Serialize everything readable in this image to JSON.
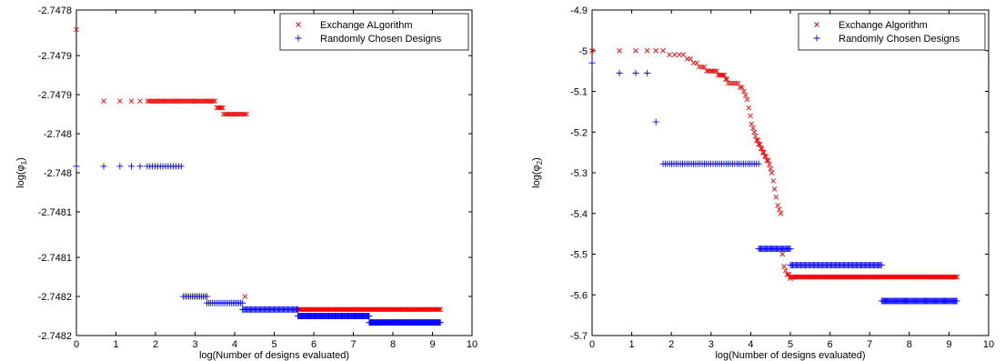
{
  "colors": {
    "series_a": "#ff0000",
    "series_b": "#0000ff"
  },
  "chart_data": [
    {
      "type": "scatter",
      "xlabel": "log(Number of designs evaluated)",
      "ylabel_base": "log(φ",
      "ylabel_sub": "1",
      "ylabel_end": ")",
      "xlim": [
        0,
        10
      ],
      "ylim": [
        -2.74825,
        -2.74775
      ],
      "xticks": [
        "0",
        "1",
        "2",
        "3",
        "4",
        "5",
        "6",
        "7",
        "8",
        "9",
        "10"
      ],
      "xtick_values": [
        0,
        1,
        2,
        3,
        4,
        5,
        6,
        7,
        8,
        9,
        10
      ],
      "yticks": [
        "-2.7478",
        "-2.7479",
        "-2.7479",
        "-2.748",
        "-2.748",
        "-2.7481",
        "-2.7481",
        "-2.7482",
        "-2.7482"
      ],
      "ytick_values": [
        -2.74775,
        -2.74782,
        -2.74788,
        -2.74794,
        -2.748,
        -2.74806,
        -2.74813,
        -2.74819,
        -2.74825
      ],
      "legend_position": "top-right",
      "series": [
        {
          "name": "Exchange ALgorithm",
          "marker": "x",
          "segments": [
            {
              "x": [
                0.0
              ],
              "y": [
                -2.74778
              ]
            },
            {
              "x": [
                0.69,
                1.1,
                1.39,
                1.61
              ],
              "y": [
                -2.74789,
                -2.74789,
                -2.74789,
                -2.74789
              ]
            },
            {
              "x_range": [
                1.8,
                3.5
              ],
              "count": 40,
              "y_const": -2.74789
            },
            {
              "x_range": [
                3.55,
                3.7
              ],
              "count": 5,
              "y_const": -2.7479
            },
            {
              "x_range": [
                3.72,
                4.3
              ],
              "count": 14,
              "y_const": -2.74791
            },
            {
              "x": [
                4.26
              ],
              "y": [
                -2.74819
              ]
            },
            {
              "x_range": [
                5.6,
                9.2
              ],
              "count": 110,
              "y_const": -2.74821
            }
          ]
        },
        {
          "name": "Randomly Chosen Designs",
          "marker": "+",
          "segments": [
            {
              "x": [
                0.0
              ],
              "y": [
                -2.74799
              ]
            },
            {
              "x": [
                0.69,
                1.1,
                1.39,
                1.61
              ],
              "y": [
                -2.74799,
                -2.74799,
                -2.74799,
                -2.74799
              ]
            },
            {
              "x_range": [
                1.79,
                2.65
              ],
              "count": 14,
              "y_const": -2.74799
            },
            {
              "x_range": [
                2.7,
                3.3
              ],
              "count": 14,
              "y_const": -2.74819
            },
            {
              "x_range": [
                3.3,
                4.2
              ],
              "count": 20,
              "y_const": -2.7482
            },
            {
              "x_range": [
                4.2,
                5.6
              ],
              "count": 50,
              "y_const": -2.74821
            },
            {
              "x_range": [
                5.6,
                7.4
              ],
              "count": 90,
              "y_const": -2.74822
            },
            {
              "x_range": [
                7.4,
                9.2
              ],
              "count": 100,
              "y_const": -2.74823
            }
          ]
        }
      ]
    },
    {
      "type": "scatter",
      "xlabel": "log(Number of designs evaluated)",
      "ylabel_base": "log(φ",
      "ylabel_sub": "2",
      "ylabel_end": ")",
      "xlim": [
        0,
        10
      ],
      "ylim": [
        -5.7,
        -4.9
      ],
      "xticks": [
        "0",
        "1",
        "2",
        "3",
        "4",
        "5",
        "6",
        "7",
        "8",
        "9",
        "10"
      ],
      "xtick_values": [
        0,
        1,
        2,
        3,
        4,
        5,
        6,
        7,
        8,
        9,
        10
      ],
      "yticks": [
        "-4.9",
        "-5",
        "-5.1",
        "-5.2",
        "-5.3",
        "-5.4",
        "-5.5",
        "-5.6",
        "-5.7"
      ],
      "ytick_values": [
        -4.9,
        -5.0,
        -5.1,
        -5.2,
        -5.3,
        -5.4,
        -5.5,
        -5.6,
        -5.7
      ],
      "legend_position": "top-right",
      "series": [
        {
          "name": "Exchange Algorithm",
          "marker": "x",
          "segments": [
            {
              "x": [
                0.0,
                0.69,
                1.1,
                1.39,
                1.61
              ],
              "y": [
                -5.0,
                -5.0,
                -5.0,
                -5.0,
                -5.0
              ]
            },
            {
              "x": [
                1.79,
                1.95,
                2.08,
                2.2,
                2.3,
                2.4,
                2.48,
                2.56,
                2.64,
                2.7,
                2.77,
                2.83,
                2.89,
                2.94,
                3.0,
                3.04,
                3.09,
                3.14,
                3.18,
                3.22,
                3.26,
                3.3,
                3.33,
                3.37,
                3.4,
                3.43,
                3.5,
                3.56,
                3.62,
                3.68,
                3.73,
                3.78,
                3.83,
                3.87,
                3.91,
                3.95,
                3.99,
                4.02,
                4.06,
                4.09,
                4.12,
                4.15,
                4.18,
                4.2,
                4.23,
                4.26,
                4.28,
                4.31,
                4.33,
                4.36,
                4.38,
                4.41,
                4.44,
                4.47,
                4.5,
                4.53,
                4.57,
                4.6,
                4.64,
                4.68,
                4.72,
                4.76,
                4.8,
                4.84,
                4.88,
                4.92,
                4.96,
                5.0
              ],
              "y": [
                -5.0,
                -5.01,
                -5.01,
                -5.01,
                -5.01,
                -5.02,
                -5.02,
                -5.03,
                -5.03,
                -5.04,
                -5.04,
                -5.04,
                -5.05,
                -5.05,
                -5.05,
                -5.05,
                -5.05,
                -5.05,
                -5.06,
                -5.06,
                -5.06,
                -5.06,
                -5.06,
                -5.07,
                -5.07,
                -5.08,
                -5.08,
                -5.08,
                -5.08,
                -5.08,
                -5.09,
                -5.09,
                -5.1,
                -5.11,
                -5.12,
                -5.14,
                -5.16,
                -5.18,
                -5.19,
                -5.2,
                -5.21,
                -5.22,
                -5.22,
                -5.23,
                -5.23,
                -5.24,
                -5.24,
                -5.25,
                -5.25,
                -5.26,
                -5.26,
                -5.27,
                -5.27,
                -5.28,
                -5.29,
                -5.3,
                -5.32,
                -5.34,
                -5.36,
                -5.38,
                -5.39,
                -5.4,
                -5.5,
                -5.53,
                -5.54,
                -5.55,
                -5.55,
                -5.56
              ]
            },
            {
              "x_range": [
                5.0,
                9.2
              ],
              "count": 130,
              "y_const": -5.556
            }
          ]
        },
        {
          "name": "Randomly Chosen Designs",
          "marker": "+",
          "segments": [
            {
              "x": [
                0.0,
                0.69,
                1.1,
                1.39,
                1.61
              ],
              "y": [
                -5.03,
                -5.055,
                -5.055,
                -5.055,
                -5.175
              ]
            },
            {
              "x_range": [
                1.79,
                4.2
              ],
              "count": 45,
              "y_const": -5.278
            },
            {
              "x_range": [
                4.2,
                5.0
              ],
              "count": 30,
              "y_const": -5.487
            },
            {
              "x_range": [
                5.0,
                7.3
              ],
              "count": 80,
              "y_const": -5.527
            },
            {
              "x_range": [
                7.3,
                9.2
              ],
              "count": 80,
              "y_const": -5.615
            }
          ]
        }
      ]
    }
  ]
}
